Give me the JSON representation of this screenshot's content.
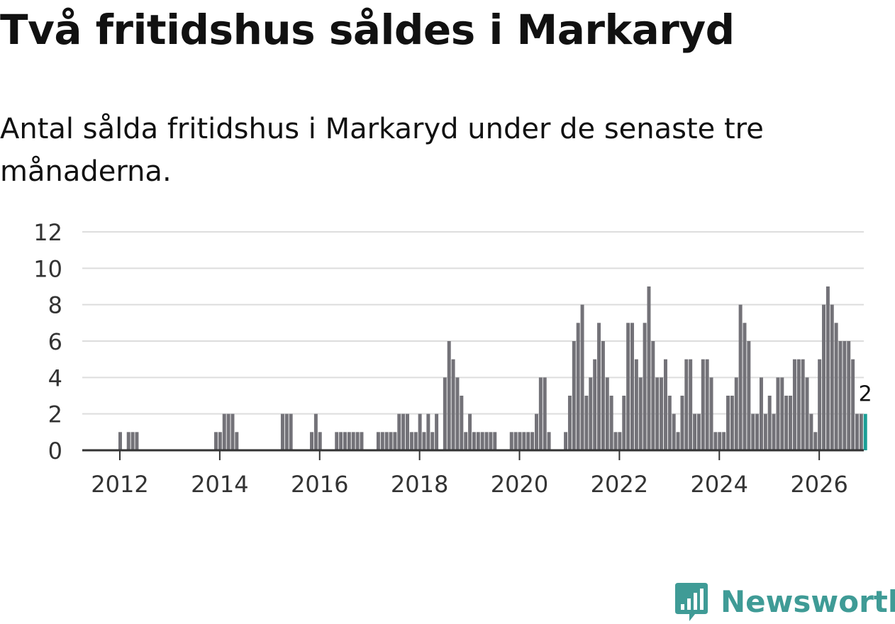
{
  "brand": {
    "name": "Newsworthy",
    "color": "#3f9b96"
  },
  "chart_data": {
    "type": "bar",
    "title": "Två fritidshus såldes i Markaryd",
    "subtitle": "Antal sålda fritidshus i Markaryd under de senaste tre månaderna.",
    "xlabel": "",
    "ylabel": "",
    "ylim": [
      0,
      12
    ],
    "yticks": [
      0,
      2,
      4,
      6,
      8,
      10,
      12
    ],
    "xticks": [
      "2012",
      "2014",
      "2016",
      "2018",
      "2020",
      "2022",
      "2024",
      "2026"
    ],
    "grid": true,
    "start": "2012-01",
    "bar_color": "#737278",
    "highlight_color": "#1a9e95",
    "highlight_label": "2",
    "values": [
      1,
      0,
      1,
      1,
      1,
      0,
      0,
      0,
      0,
      0,
      0,
      0,
      0,
      0,
      0,
      0,
      0,
      0,
      0,
      0,
      0,
      0,
      0,
      1,
      1,
      2,
      2,
      2,
      1,
      0,
      0,
      0,
      0,
      0,
      0,
      0,
      0,
      0,
      0,
      2,
      2,
      2,
      0,
      0,
      0,
      0,
      1,
      2,
      1,
      0,
      0,
      0,
      1,
      1,
      1,
      1,
      1,
      1,
      1,
      0,
      0,
      0,
      1,
      1,
      1,
      1,
      1,
      2,
      2,
      2,
      1,
      1,
      2,
      1,
      2,
      1,
      2,
      0,
      4,
      6,
      5,
      4,
      3,
      1,
      2,
      1,
      1,
      1,
      1,
      1,
      1,
      0,
      0,
      0,
      1,
      1,
      1,
      1,
      1,
      1,
      2,
      4,
      4,
      1,
      0,
      0,
      0,
      1,
      3,
      6,
      7,
      8,
      3,
      4,
      5,
      7,
      6,
      4,
      3,
      1,
      1,
      3,
      7,
      7,
      5,
      4,
      7,
      9,
      6,
      4,
      4,
      5,
      3,
      2,
      1,
      3,
      5,
      5,
      2,
      2,
      5,
      5,
      4,
      1,
      1,
      1,
      3,
      3,
      4,
      8,
      7,
      6,
      2,
      2,
      4,
      2,
      3,
      2,
      4,
      4,
      3,
      3,
      5,
      5,
      5,
      4,
      2,
      1,
      5,
      8,
      9,
      8,
      7,
      6,
      6,
      6,
      5,
      2,
      2,
      2
    ]
  }
}
